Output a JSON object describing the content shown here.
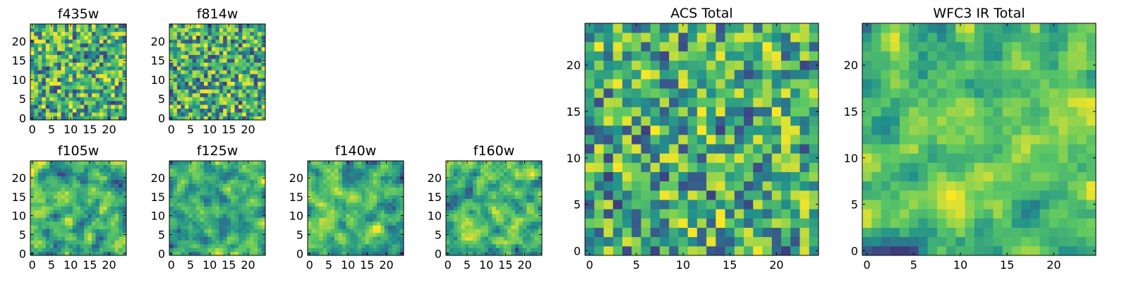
{
  "colormap": [
    "#440154",
    "#3b528b",
    "#21918c",
    "#5ec962",
    "#fde725"
  ],
  "chart_data": [
    {
      "type": "heatmap",
      "title": "f435w",
      "grid": [
        25,
        25
      ],
      "xlim": [
        0,
        24
      ],
      "ylim": [
        0,
        24
      ],
      "xticks": [
        0,
        5,
        10,
        15,
        20
      ],
      "yticks": [
        0,
        5,
        10,
        15,
        20
      ],
      "seed": 11,
      "smooth": 0
    },
    {
      "type": "heatmap",
      "title": "f814w",
      "grid": [
        25,
        25
      ],
      "xlim": [
        0,
        24
      ],
      "ylim": [
        0,
        24
      ],
      "xticks": [
        0,
        5,
        10,
        15,
        20
      ],
      "yticks": [
        0,
        5,
        10,
        15,
        20
      ],
      "seed": 23,
      "smooth": 0
    },
    {
      "type": "heatmap",
      "title": "f105w",
      "grid": [
        25,
        25
      ],
      "xlim": [
        0,
        24
      ],
      "ylim": [
        0,
        24
      ],
      "xticks": [
        0,
        5,
        10,
        15,
        20
      ],
      "yticks": [
        0,
        5,
        10,
        15,
        20
      ],
      "seed": 37,
      "smooth": 1
    },
    {
      "type": "heatmap",
      "title": "f125w",
      "grid": [
        25,
        25
      ],
      "xlim": [
        0,
        24
      ],
      "ylim": [
        0,
        24
      ],
      "xticks": [
        0,
        5,
        10,
        15,
        20
      ],
      "yticks": [
        0,
        5,
        10,
        15,
        20
      ],
      "seed": 41,
      "smooth": 1
    },
    {
      "type": "heatmap",
      "title": "f140w",
      "grid": [
        25,
        25
      ],
      "xlim": [
        0,
        24
      ],
      "ylim": [
        0,
        24
      ],
      "xticks": [
        0,
        5,
        10,
        15,
        20
      ],
      "yticks": [
        0,
        5,
        10,
        15,
        20
      ],
      "seed": 53,
      "smooth": 1
    },
    {
      "type": "heatmap",
      "title": "f160w",
      "grid": [
        25,
        25
      ],
      "xlim": [
        0,
        24
      ],
      "ylim": [
        0,
        24
      ],
      "xticks": [
        0,
        5,
        10,
        15,
        20
      ],
      "yticks": [
        0,
        5,
        10,
        15,
        20
      ],
      "seed": 67,
      "smooth": 1
    },
    {
      "type": "heatmap",
      "title": "ACS Total",
      "grid": [
        25,
        25
      ],
      "xlim": [
        0,
        24
      ],
      "ylim": [
        0,
        24
      ],
      "xticks": [
        0,
        5,
        10,
        15,
        20
      ],
      "yticks": [
        0,
        5,
        10,
        15,
        20
      ],
      "seed": 79,
      "smooth": 0
    },
    {
      "type": "heatmap",
      "title": "WFC3 IR Total",
      "grid": [
        25,
        25
      ],
      "xlim": [
        0,
        24
      ],
      "ylim": [
        0,
        24
      ],
      "xticks": [
        0,
        5,
        10,
        15,
        20
      ],
      "yticks": [
        0,
        5,
        10,
        15,
        20
      ],
      "seed": 97,
      "smooth": 1
    }
  ]
}
